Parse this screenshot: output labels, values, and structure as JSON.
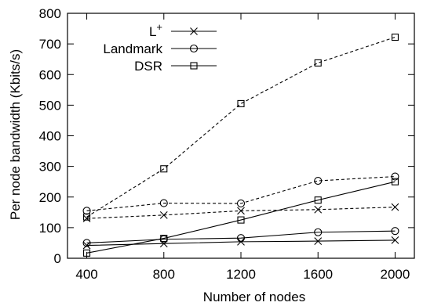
{
  "chart_data": {
    "type": "line",
    "xlabel": "Number of nodes",
    "ylabel": "Per node bandwidth (Kbits/s)",
    "x": [
      400,
      800,
      1200,
      1600,
      2000
    ],
    "xticks": [
      400,
      800,
      1200,
      1600,
      2000
    ],
    "yticks": [
      0,
      100,
      200,
      300,
      400,
      500,
      600,
      700,
      800
    ],
    "xlim": [
      300,
      2100
    ],
    "ylim": [
      0,
      800
    ],
    "legend_position": "top-left",
    "series": [
      {
        "name": "L",
        "name_superscript": "+",
        "marker": "cross",
        "style": "solid",
        "values": [
          42,
          48,
          54,
          56,
          59
        ]
      },
      {
        "name": "L",
        "name_superscript": "+",
        "marker": "cross",
        "style": "dashed",
        "values": [
          130,
          141,
          155,
          159,
          167
        ]
      },
      {
        "name": "Landmark",
        "marker": "circle",
        "style": "solid",
        "values": [
          50,
          62,
          66,
          85,
          89
        ]
      },
      {
        "name": "Landmark",
        "marker": "circle",
        "style": "dashed",
        "values": [
          155,
          180,
          179,
          253,
          267
        ]
      },
      {
        "name": "DSR",
        "marker": "square",
        "style": "solid",
        "values": [
          17,
          65,
          125,
          190,
          250
        ]
      },
      {
        "name": "DSR",
        "marker": "square",
        "style": "dashed",
        "values": [
          135,
          292,
          505,
          638,
          722
        ]
      }
    ],
    "legend": [
      {
        "name": "L",
        "superscript": "+",
        "marker": "cross"
      },
      {
        "name": "Landmark",
        "marker": "circle"
      },
      {
        "name": "DSR",
        "marker": "square"
      }
    ]
  }
}
